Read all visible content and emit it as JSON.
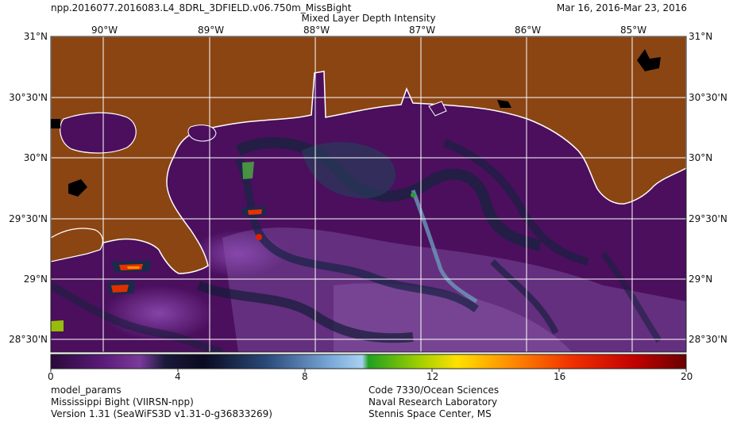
{
  "header": {
    "product": "npp.2016077.2016083.L4_8DRL_3DFIELD.v06.750m_MissBight",
    "title": "Mixed Layer Depth Intensity",
    "date_range": "Mar 16, 2016-Mar 23, 2016"
  },
  "map": {
    "lon_labels": [
      "90°W",
      "89°W",
      "88°W",
      "87°W",
      "86°W",
      "85°W"
    ],
    "lat_labels": [
      "31°N",
      "30°30'N",
      "30°N",
      "29°30'N",
      "29°N",
      "28°30'N"
    ],
    "colors": {
      "land": "#8b4513",
      "coast": "#ffffff",
      "water_base": "#4b0f5e",
      "grid": "#ffffff"
    }
  },
  "colorbar": {
    "min": 0,
    "max": 20,
    "tick_labels": [
      "0",
      "4",
      "8",
      "12",
      "16",
      "20"
    ],
    "colors": [
      "#2a0a3a",
      "#5a1a78",
      "#7a3a9a",
      "#1a1a3a",
      "#223a6a",
      "#4a7ab0",
      "#a8d0f0",
      "#2aa02a",
      "#c8e000",
      "#ffe000",
      "#ff8000",
      "#e02000",
      "#8a0000"
    ]
  },
  "footer": {
    "left_line1": "model_params",
    "left_line2": "Mississippi Bight (VIIRSN-npp)",
    "left_line3": "Version 1.31 (SeaWiFS3D v1.31-0-g36833269)",
    "right_line1": "Code 7330/Ocean Sciences",
    "right_line2": "Naval Research Laboratory",
    "right_line3": "Stennis Space Center, MS"
  }
}
